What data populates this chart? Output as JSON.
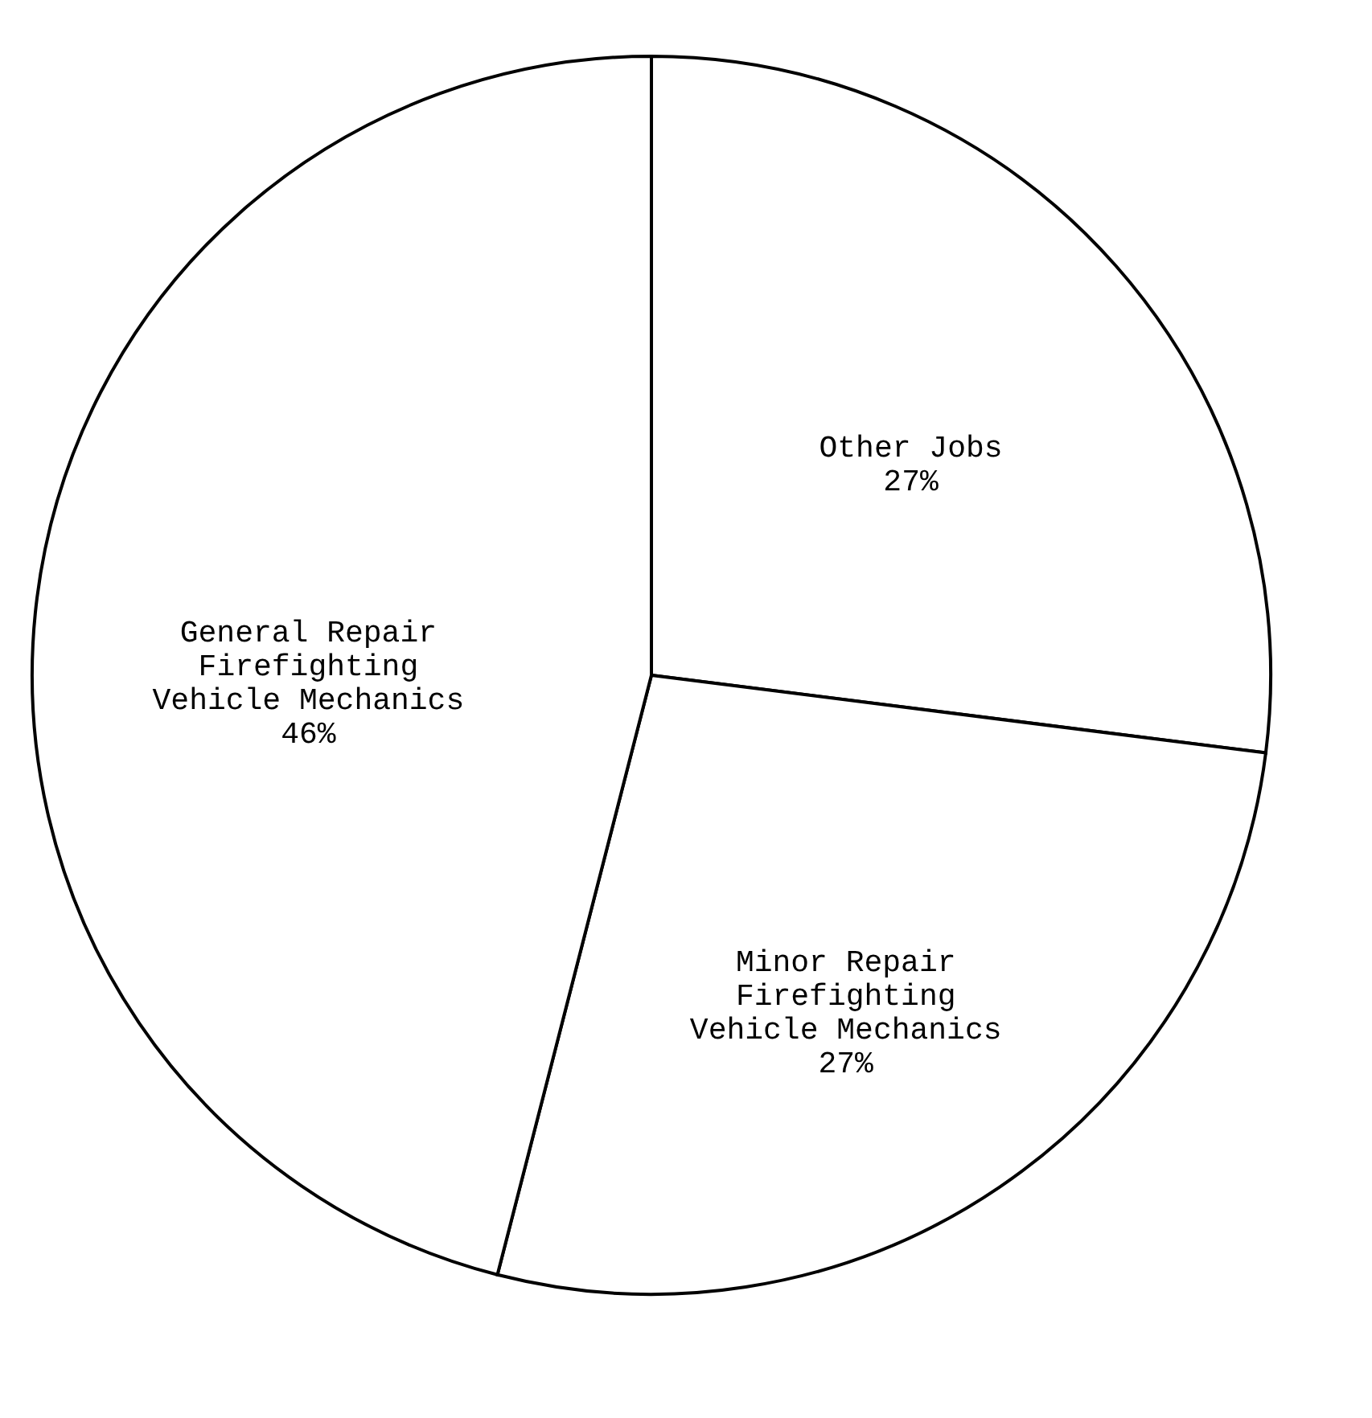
{
  "chart_data": {
    "type": "pie",
    "categories": [
      "Other Jobs",
      "Minor Repair\nFirefighting\nVehicle Mechanics",
      "General Repair\nFirefighting\nVehicle Mechanics"
    ],
    "values": [
      27,
      27,
      46
    ],
    "value_labels": [
      "27%",
      "27%",
      "46%"
    ],
    "colors": [
      "#ffffff",
      "#ffffff",
      "#ffffff"
    ],
    "legend": false
  }
}
